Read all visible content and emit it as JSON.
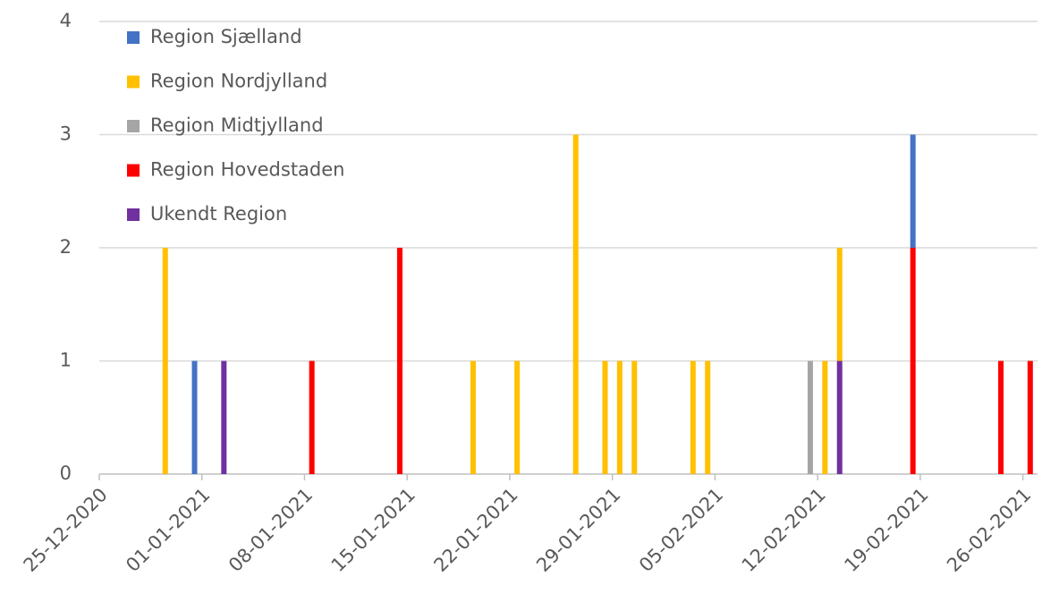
{
  "chart_data": {
    "type": "stacked_bar",
    "x": [
      "29-12-2020",
      "31-12-2020",
      "02-01-2021",
      "08-01-2021",
      "14-01-2021",
      "19-01-2021",
      "22-01-2021",
      "26-01-2021",
      "28-01-2021",
      "29-01-2021",
      "30-01-2021",
      "03-02-2021",
      "04-02-2021",
      "11-02-2021",
      "12-02-2021",
      "13-02-2021",
      "18-02-2021",
      "24-02-2021",
      "26-02-2021"
    ],
    "series": [
      {
        "name": "Region Sjælland",
        "color": "#4472c4",
        "values": [
          null,
          1,
          null,
          null,
          null,
          null,
          null,
          null,
          null,
          null,
          null,
          null,
          null,
          null,
          null,
          null,
          1,
          null,
          null
        ]
      },
      {
        "name": "Region Nordjylland",
        "color": "#ffc000",
        "values": [
          2,
          null,
          null,
          null,
          null,
          1,
          1,
          3,
          1,
          1,
          1,
          1,
          1,
          null,
          1,
          1,
          null,
          null,
          null
        ]
      },
      {
        "name": "Region Midtjylland",
        "color": "#a5a5a5",
        "values": [
          null,
          null,
          null,
          null,
          null,
          null,
          null,
          null,
          null,
          null,
          null,
          null,
          null,
          1,
          null,
          null,
          null,
          null,
          null
        ]
      },
      {
        "name": "Region Hovedstaden",
        "color": "#ff0000",
        "values": [
          null,
          null,
          null,
          1,
          2,
          null,
          null,
          null,
          null,
          null,
          null,
          null,
          null,
          null,
          null,
          null,
          2,
          1,
          1
        ]
      },
      {
        "name": "Ukendt Region",
        "color": "#7030a0",
        "values": [
          null,
          null,
          1,
          null,
          null,
          null,
          null,
          null,
          null,
          null,
          null,
          null,
          null,
          null,
          null,
          1,
          null,
          null,
          null
        ]
      }
    ],
    "xlim": [
      "25-12-2020",
      "27-02-2021"
    ],
    "xticks": [
      "25-12-2020",
      "01-01-2021",
      "08-01-2021",
      "15-01-2021",
      "22-01-2021",
      "29-01-2021",
      "05-02-2021",
      "12-02-2021",
      "19-02-2021",
      "26-02-2021"
    ],
    "ylim": [
      0,
      4
    ],
    "yticks": [
      0,
      1,
      2,
      3,
      4
    ],
    "grid": true,
    "legend": "top-left"
  }
}
